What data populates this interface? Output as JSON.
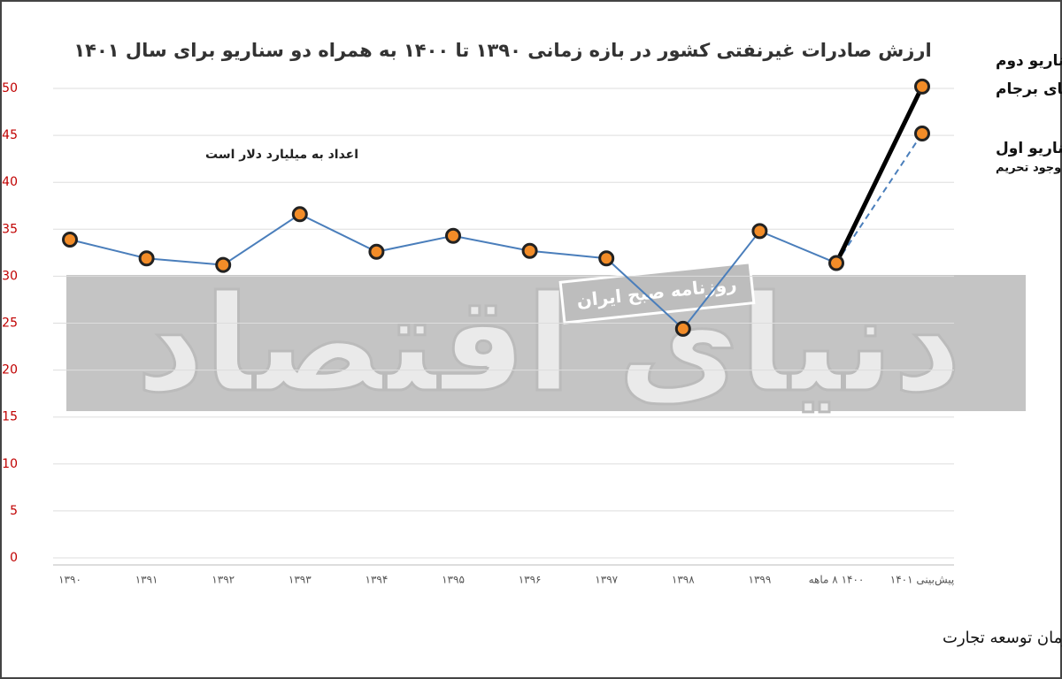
{
  "chart_data": {
    "type": "line",
    "title": "ارزش صادرات غیرنفتی کشور در بازه زمانی ۱۳۹۰ تا ۱۴۰۰ به همراه دو سناریو برای سال ۱۴۰۱",
    "subtitle": "اعداد به میلیارد دلار است",
    "source": "منبع : سازمان توسعه تجارت",
    "watermark": "دنیای اقتصاد",
    "watermark_badge": "روزنامه صبح ایران",
    "categories": [
      "۱۳۹۰",
      "۱۳۹۱",
      "۱۳۹۲",
      "۱۳۹۳",
      "۱۳۹۴",
      "۱۳۹۵",
      "۱۳۹۶",
      "۱۳۹۷",
      "۱۳۹۸",
      "۱۳۹۹",
      "۱۴۰۰ ۸ ماهه",
      "پیش‌بینی ۱۴۰۱"
    ],
    "series": [
      {
        "color": "#4a7ebb",
        "values": [
          33.9,
          31.9,
          31.2,
          36.6,
          32.6,
          34.3,
          32.7,
          31.9,
          24.4,
          34.8,
          31.4,
          null
        ]
      },
      {
        "name": "سناریو اول",
        "note": "با وجود تحریم",
        "color": "#4a7ebb",
        "dashed": true,
        "values": [
          null,
          null,
          null,
          null,
          null,
          null,
          null,
          null,
          null,
          null,
          31.4,
          45.2
        ]
      },
      {
        "name": "سناریو دوم",
        "note": "با احیای برجام",
        "color": "#000000",
        "dashed": false,
        "values": [
          null,
          null,
          null,
          null,
          null,
          null,
          null,
          null,
          null,
          null,
          31.4,
          50.2
        ]
      }
    ],
    "ylim": [
      0,
      50
    ],
    "yticks": [
      0,
      5,
      10,
      15,
      20,
      25,
      30,
      35,
      40,
      45,
      50
    ],
    "grid": true
  }
}
